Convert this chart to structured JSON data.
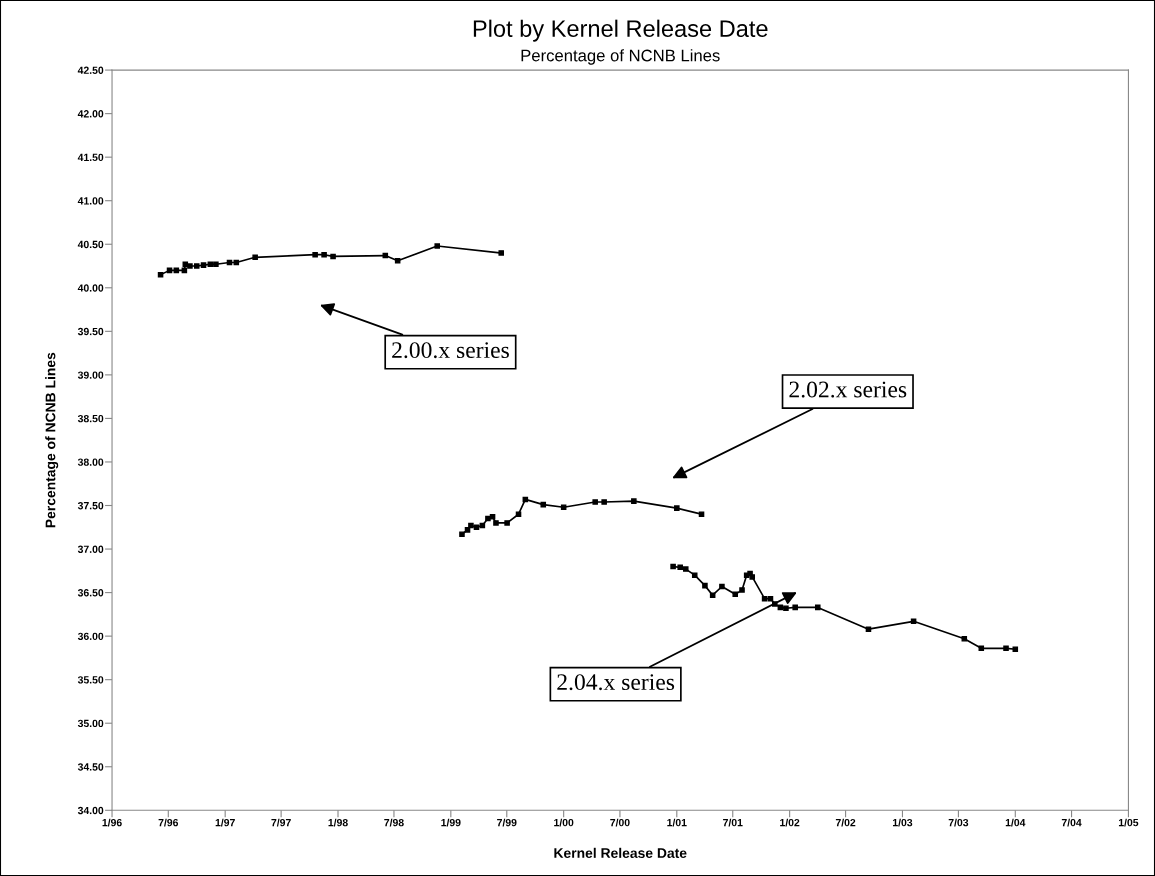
{
  "chart_data": {
    "type": "line",
    "title": "Plot by Kernel Release Date",
    "subtitle": "Percentage of NCNB Lines",
    "xlabel": "Kernel Release Date",
    "ylabel": "Percentage of NCNB Lines",
    "marker": "square",
    "line_style": "solid",
    "grid": false,
    "xlim": [
      "1996-01-01",
      "2005-01-01"
    ],
    "xticks": [
      {
        "value": "1996-01-01",
        "label": "1/96"
      },
      {
        "value": "1996-07-01",
        "label": "7/96"
      },
      {
        "value": "1997-01-01",
        "label": "1/97"
      },
      {
        "value": "1997-07-01",
        "label": "7/97"
      },
      {
        "value": "1998-01-01",
        "label": "1/98"
      },
      {
        "value": "1998-07-01",
        "label": "7/98"
      },
      {
        "value": "1999-01-01",
        "label": "1/99"
      },
      {
        "value": "1999-07-01",
        "label": "7/99"
      },
      {
        "value": "2000-01-01",
        "label": "1/00"
      },
      {
        "value": "2000-07-01",
        "label": "7/00"
      },
      {
        "value": "2001-01-01",
        "label": "1/01"
      },
      {
        "value": "2001-07-01",
        "label": "7/01"
      },
      {
        "value": "2002-01-01",
        "label": "1/02"
      },
      {
        "value": "2002-07-01",
        "label": "7/02"
      },
      {
        "value": "2003-01-01",
        "label": "1/03"
      },
      {
        "value": "2003-07-01",
        "label": "7/03"
      },
      {
        "value": "2004-01-01",
        "label": "1/04"
      },
      {
        "value": "2004-07-01",
        "label": "7/04"
      },
      {
        "value": "2005-01-01",
        "label": "1/05"
      }
    ],
    "ylim": [
      34,
      42.5
    ],
    "yticks": [
      {
        "value": 34,
        "label": "34.00"
      },
      {
        "value": 34.5,
        "label": "34.50"
      },
      {
        "value": 35,
        "label": "35.00"
      },
      {
        "value": 35.5,
        "label": "35.50"
      },
      {
        "value": 36,
        "label": "36.00"
      },
      {
        "value": 36.5,
        "label": "36.50"
      },
      {
        "value": 37,
        "label": "37.00"
      },
      {
        "value": 37.5,
        "label": "37.50"
      },
      {
        "value": 38,
        "label": "38.00"
      },
      {
        "value": 38.5,
        "label": "38.50"
      },
      {
        "value": 39,
        "label": "39.00"
      },
      {
        "value": 39.5,
        "label": "39.50"
      },
      {
        "value": 40,
        "label": "40.00"
      },
      {
        "value": 40.5,
        "label": "40.50"
      },
      {
        "value": 41,
        "label": "41.00"
      },
      {
        "value": 41.5,
        "label": "41.50"
      },
      {
        "value": 42,
        "label": "42.00"
      },
      {
        "value": 42.5,
        "label": "42.50"
      }
    ],
    "series": [
      {
        "color": "#000000",
        "x": [
          "1996-06-06",
          "1996-07-05",
          "1996-07-27",
          "1996-08-22",
          "1996-08-25",
          "1996-09-09",
          "1996-10-01",
          "1996-10-23",
          "1996-11-14",
          "1996-12-02",
          "1997-01-15",
          "1997-02-06",
          "1997-04-08",
          "1997-10-19",
          "1997-11-17",
          "1997-12-16",
          "1998-06-03",
          "1998-07-13",
          "1998-11-18",
          "1999-06-13"
        ],
        "values": [
          40.15,
          40.2,
          40.2,
          40.2,
          40.27,
          40.25,
          40.25,
          40.26,
          40.27,
          40.27,
          40.29,
          40.29,
          40.35,
          40.38,
          40.38,
          40.36,
          40.37,
          40.31,
          40.48,
          40.4
        ]
      },
      {
        "color": "#000000",
        "x": [
          "1999-02-06",
          "1999-02-24",
          "1999-03-07",
          "1999-03-25",
          "1999-04-13",
          "1999-05-01",
          "1999-05-16",
          "1999-05-27",
          "1999-07-02",
          "1999-08-08",
          "1999-08-30",
          "1999-10-27",
          "2000-01-01",
          "2000-04-12",
          "2000-05-11",
          "2000-08-15",
          "2001-01-01",
          "2001-03-22"
        ],
        "values": [
          37.17,
          37.22,
          37.27,
          37.25,
          37.27,
          37.35,
          37.37,
          37.3,
          37.3,
          37.4,
          37.57,
          37.51,
          37.48,
          37.54,
          37.54,
          37.55,
          37.47,
          37.4
        ]
      },
      {
        "color": "#000000",
        "x": [
          "2000-12-20",
          "2001-01-12",
          "2001-01-30",
          "2001-02-28",
          "2001-04-02",
          "2001-04-27",
          "2001-05-27",
          "2001-07-09",
          "2001-07-31",
          "2001-08-15",
          "2001-08-26",
          "2001-09-02",
          "2001-10-12",
          "2001-10-31",
          "2001-11-14",
          "2001-12-02",
          "2001-12-20",
          "2002-01-19",
          "2002-04-02",
          "2002-09-13",
          "2003-02-06",
          "2003-07-20",
          "2003-09-13",
          "2003-12-02",
          "2004-01-01"
        ],
        "values": [
          36.8,
          36.79,
          36.77,
          36.7,
          36.58,
          36.47,
          36.57,
          36.48,
          36.53,
          36.7,
          36.72,
          36.68,
          36.43,
          36.43,
          36.37,
          36.33,
          36.32,
          36.33,
          36.33,
          36.08,
          36.17,
          35.97,
          35.86,
          35.86,
          35.85
        ]
      }
    ],
    "annotations": [
      "2.00.x series",
      "2.02.x series",
      "2.04.x series"
    ]
  }
}
